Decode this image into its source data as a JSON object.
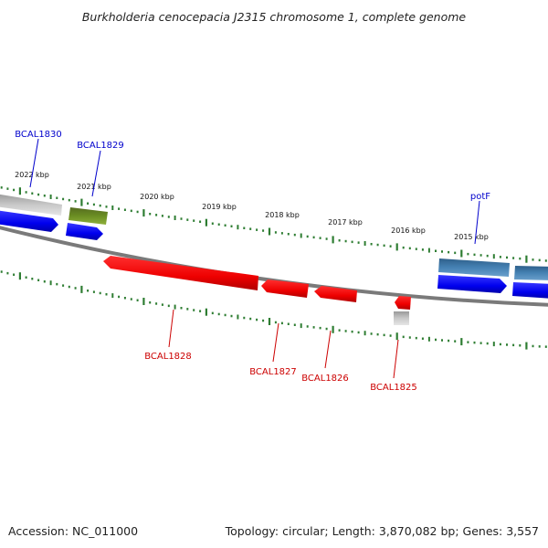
{
  "title": "Burkholderia cenocepacia J2315 chromosome 1, complete genome",
  "footer": {
    "accession": "Accession: NC_011000",
    "summary": "Topology: circular; Length: 3,870,082 bp; Genes: 3,557"
  },
  "colors": {
    "backbone": "#808080",
    "tick": "#2e7d32",
    "cds": "#0000ee",
    "gene_red": "#ee0000",
    "gene_grey": "#b8b8b8",
    "gene_olive": "#6b8e23",
    "gene_steel": "#4682b4",
    "label_blue": "#0000cc",
    "label_red": "#cc0000"
  },
  "kbp_labels": [
    "2022 kbp",
    "2021 kbp",
    "2020 kbp",
    "2019 kbp",
    "2018 kbp",
    "2017 kbp",
    "2016 kbp",
    "2015 kbp"
  ],
  "gene_labels": {
    "bcal1830": "BCAL1830",
    "bcal1829": "BCAL1829",
    "potf": "potF",
    "bcal1828": "BCAL1828",
    "bcal1827": "BCAL1827",
    "bcal1826": "BCAL1826",
    "bcal1825": "BCAL1825"
  }
}
